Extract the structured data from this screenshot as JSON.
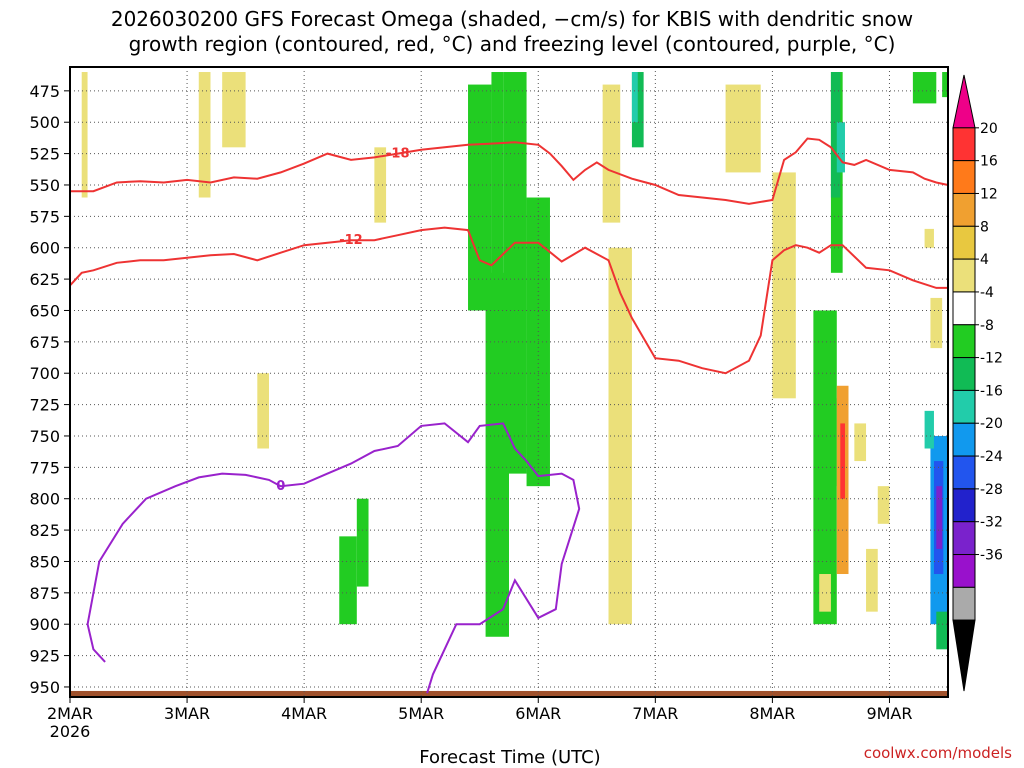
{
  "title_line1": "2026030200 GFS Forecast Omega (shaded, −cm/s) for KBIS with dendritic snow",
  "title_line2": "growth region (contoured, red, °C) and freezing level (contoured, purple, °C)",
  "xlabel": "Forecast Time (UTC)",
  "year_label": "2026",
  "credit": "coolwx.com/models",
  "chart_data": {
    "type": "heatmap",
    "title": "2026030200 GFS Forecast Omega (shaded, −cm/s) for KBIS with dendritic snow growth region (contoured, red, °C) and freezing level (contoured, purple, °C)",
    "xlabel": "Forecast Time (UTC)",
    "ylabel": "",
    "x_ticks": [
      "2MAR",
      "3MAR",
      "4MAR",
      "5MAR",
      "6MAR",
      "7MAR",
      "8MAR",
      "9MAR"
    ],
    "x_range_days": [
      0,
      7.5
    ],
    "y_ticks": [
      475,
      500,
      525,
      550,
      575,
      600,
      625,
      650,
      675,
      700,
      725,
      750,
      775,
      800,
      825,
      850,
      875,
      900,
      925,
      950
    ],
    "y_range_hPa": [
      456,
      958
    ],
    "grid": true,
    "colorbar": {
      "labels": [
        "20",
        "16",
        "12",
        "8",
        "4",
        "-4",
        "-8",
        "-12",
        "-16",
        "-20",
        "-24",
        "-28",
        "-32",
        "-36"
      ],
      "colors": [
        "#ee0088",
        "#ff3333",
        "#ff7a1a",
        "#f0a030",
        "#e8c840",
        "#ebe07a",
        "#ffffff",
        "#22cc22",
        "#11bb55",
        "#22ccaa",
        "#1199ee",
        "#2255ee",
        "#2222cc",
        "#7a22cc",
        "#9911cc",
        "#aaaaaa",
        "#000000"
      ]
    },
    "series": [
      {
        "name": "-18",
        "color": "#ee3333",
        "points": [
          [
            0.0,
            555
          ],
          [
            0.2,
            555
          ],
          [
            0.4,
            548
          ],
          [
            0.6,
            547
          ],
          [
            0.8,
            548
          ],
          [
            1.0,
            546
          ],
          [
            1.2,
            548
          ],
          [
            1.4,
            544
          ],
          [
            1.6,
            545
          ],
          [
            1.8,
            540
          ],
          [
            2.0,
            533
          ],
          [
            2.2,
            525
          ],
          [
            2.4,
            530
          ],
          [
            2.6,
            528
          ],
          [
            2.8,
            525
          ],
          [
            3.0,
            522
          ],
          [
            3.2,
            520
          ],
          [
            3.4,
            518
          ],
          [
            3.6,
            517
          ],
          [
            3.8,
            516
          ],
          [
            4.0,
            518
          ],
          [
            4.1,
            525
          ],
          [
            4.2,
            535
          ],
          [
            4.3,
            546
          ],
          [
            4.4,
            538
          ],
          [
            4.5,
            532
          ],
          [
            4.6,
            538
          ],
          [
            4.8,
            545
          ],
          [
            5.0,
            550
          ],
          [
            5.2,
            558
          ],
          [
            5.4,
            560
          ],
          [
            5.6,
            562
          ],
          [
            5.8,
            565
          ],
          [
            6.0,
            562
          ],
          [
            6.1,
            530
          ],
          [
            6.2,
            524
          ],
          [
            6.3,
            513
          ],
          [
            6.4,
            514
          ],
          [
            6.5,
            520
          ],
          [
            6.6,
            532
          ],
          [
            6.7,
            534
          ],
          [
            6.8,
            530
          ],
          [
            7.0,
            538
          ],
          [
            7.2,
            540
          ],
          [
            7.3,
            545
          ],
          [
            7.4,
            548
          ],
          [
            7.5,
            550
          ]
        ]
      },
      {
        "name": "-12",
        "color": "#ee3333",
        "points": [
          [
            0.0,
            630
          ],
          [
            0.1,
            620
          ],
          [
            0.2,
            618
          ],
          [
            0.4,
            612
          ],
          [
            0.6,
            610
          ],
          [
            0.8,
            610
          ],
          [
            1.0,
            608
          ],
          [
            1.2,
            606
          ],
          [
            1.4,
            605
          ],
          [
            1.6,
            610
          ],
          [
            1.8,
            604
          ],
          [
            2.0,
            598
          ],
          [
            2.2,
            596
          ],
          [
            2.4,
            594
          ],
          [
            2.6,
            594
          ],
          [
            2.8,
            590
          ],
          [
            3.0,
            586
          ],
          [
            3.2,
            584
          ],
          [
            3.4,
            586
          ],
          [
            3.5,
            610
          ],
          [
            3.6,
            614
          ],
          [
            3.8,
            596
          ],
          [
            4.0,
            596
          ],
          [
            4.2,
            611
          ],
          [
            4.4,
            600
          ],
          [
            4.6,
            610
          ],
          [
            4.7,
            636
          ],
          [
            4.8,
            656
          ],
          [
            5.0,
            688
          ],
          [
            5.2,
            690
          ],
          [
            5.4,
            696
          ],
          [
            5.6,
            700
          ],
          [
            5.8,
            690
          ],
          [
            5.9,
            670
          ],
          [
            6.0,
            610
          ],
          [
            6.1,
            602
          ],
          [
            6.2,
            598
          ],
          [
            6.3,
            600
          ],
          [
            6.4,
            604
          ],
          [
            6.5,
            598
          ],
          [
            6.6,
            598
          ],
          [
            6.8,
            616
          ],
          [
            7.0,
            618
          ],
          [
            7.2,
            626
          ],
          [
            7.4,
            632
          ],
          [
            7.5,
            632
          ]
        ]
      },
      {
        "name": "0",
        "color": "#9922cc",
        "points": [
          [
            0.3,
            930
          ],
          [
            0.2,
            920
          ],
          [
            0.15,
            900
          ],
          [
            0.25,
            850
          ],
          [
            0.45,
            820
          ],
          [
            0.65,
            800
          ],
          [
            0.9,
            790
          ],
          [
            1.1,
            783
          ],
          [
            1.3,
            780
          ],
          [
            1.5,
            781
          ],
          [
            1.7,
            785
          ],
          [
            1.8,
            790
          ],
          [
            2.0,
            788
          ],
          [
            2.2,
            780
          ],
          [
            2.4,
            772
          ],
          [
            2.6,
            762
          ],
          [
            2.8,
            758
          ],
          [
            3.0,
            742
          ],
          [
            3.2,
            740
          ],
          [
            3.4,
            755
          ],
          [
            3.5,
            742
          ],
          [
            3.7,
            740
          ],
          [
            3.8,
            760
          ],
          [
            3.9,
            770
          ],
          [
            4.0,
            782
          ],
          [
            4.2,
            780
          ],
          [
            4.3,
            785
          ],
          [
            4.35,
            808
          ],
          [
            4.2,
            852
          ],
          [
            4.15,
            888
          ],
          [
            4.0,
            895
          ],
          [
            3.8,
            865
          ],
          [
            3.7,
            888
          ],
          [
            3.5,
            900
          ],
          [
            3.3,
            900
          ],
          [
            3.1,
            940
          ],
          [
            3.05,
            955
          ]
        ]
      }
    ]
  }
}
